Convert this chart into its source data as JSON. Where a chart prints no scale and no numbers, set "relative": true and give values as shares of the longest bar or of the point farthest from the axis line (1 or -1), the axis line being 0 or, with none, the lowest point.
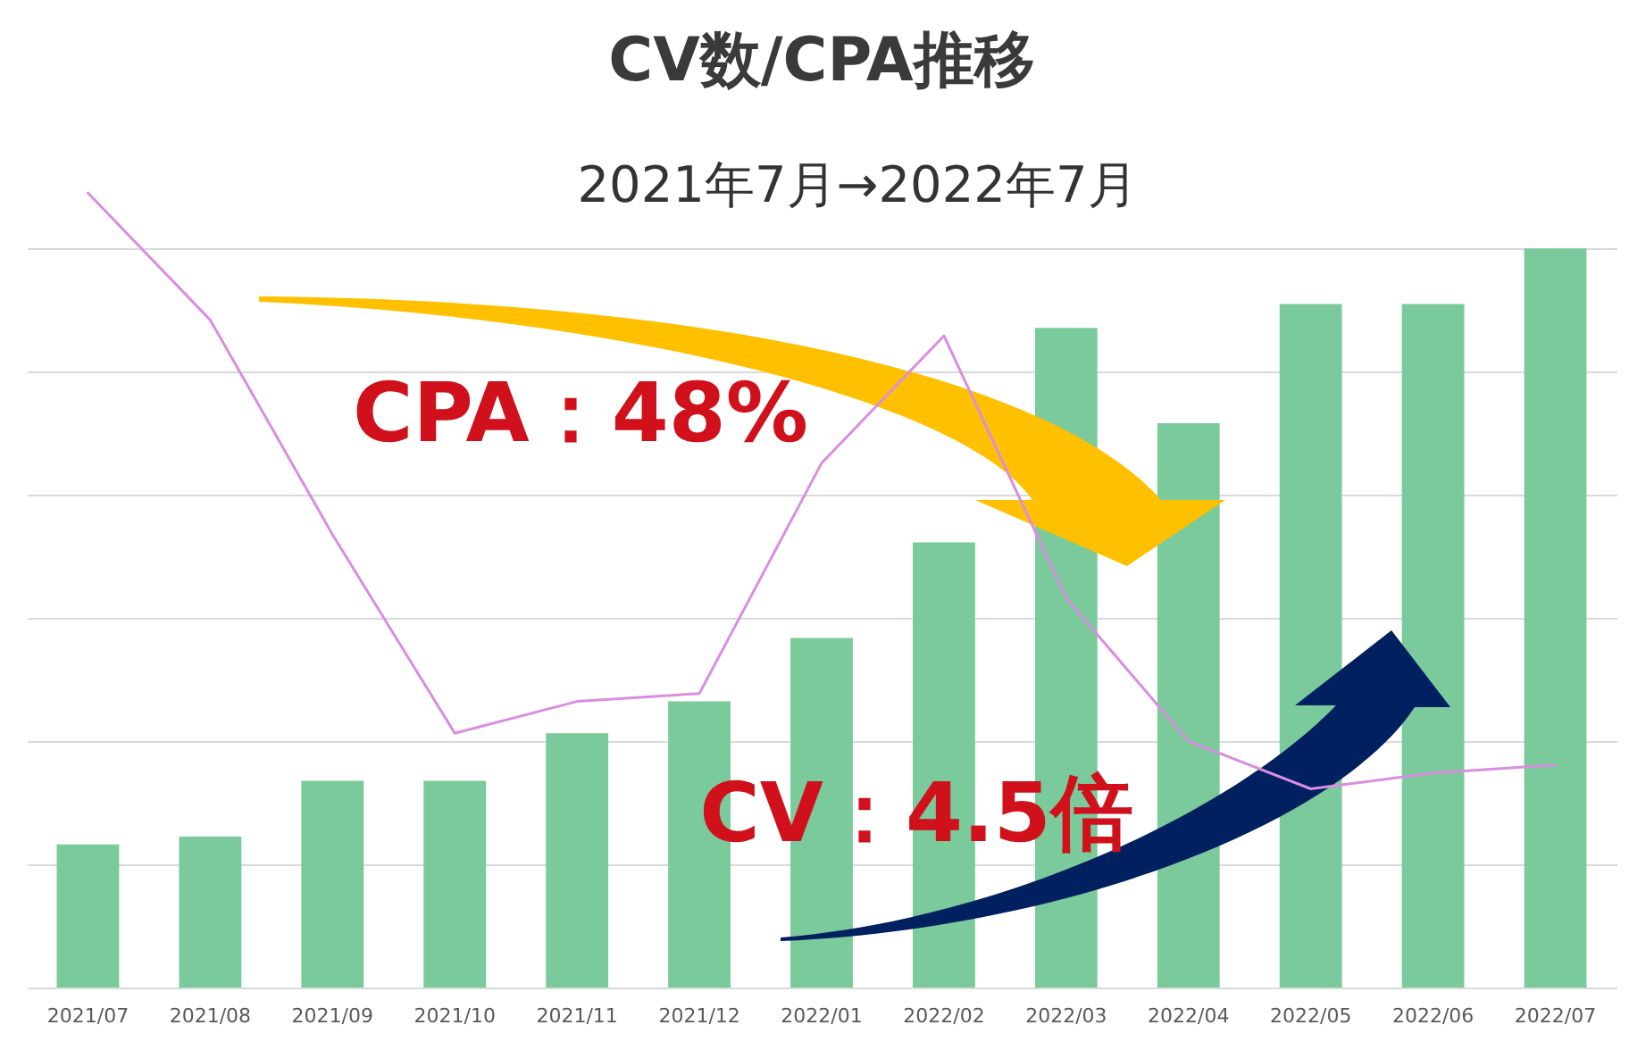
{
  "chart_data": {
    "type": "bar",
    "title": "CV数/CPA推移",
    "subtitle": "2021年7月→2022年7月",
    "categories": [
      "2021/07",
      "2021/08",
      "2021/09",
      "2021/10",
      "2021/11",
      "2021/12",
      "2022/01",
      "2022/02",
      "2022/03",
      "2022/04",
      "2022/05",
      "2022/06",
      "2022/07"
    ],
    "relative": true,
    "grid": "y",
    "series": [
      {
        "color": "#7bca9c",
        "values": [
          0.18,
          0.19,
          0.26,
          0.26,
          0.32,
          0.36,
          0.44,
          0.56,
          0.83,
          0.71,
          0.86,
          0.86,
          0.93
        ]
      },
      {
        "type": "line",
        "color": "#d98ee0",
        "values": [
          1,
          0.84,
          0.57,
          0.32,
          0.36,
          0.37,
          0.66,
          0.82,
          0.49,
          0.31,
          0.25,
          0.27,
          0.28
        ]
      }
    ],
    "annotations": [
      "CPA：48%",
      "CV：4.5倍"
    ]
  }
}
